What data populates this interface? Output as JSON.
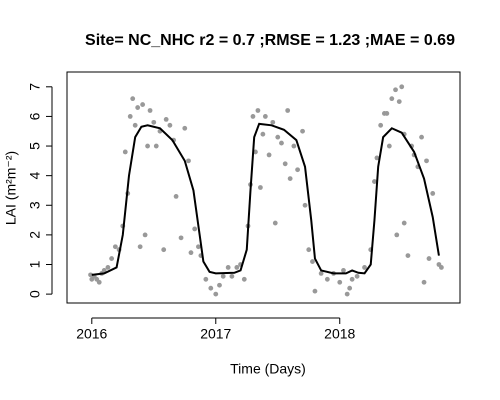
{
  "chart_data": {
    "type": "scatter",
    "title": "Site= NC_NHC r2 = 0.7 ;RMSE = 1.23 ;MAE = 0.69",
    "xlabel": "Time (Days)",
    "ylabel": "LAI (m²m⁻²)",
    "xlim": [
      2015.8,
      2018.97
    ],
    "ylim": [
      -0.3,
      7.5
    ],
    "xticks": [
      2016,
      2017,
      2018
    ],
    "yticks": [
      0,
      1,
      2,
      3,
      4,
      5,
      6,
      7
    ],
    "series": [
      {
        "type": "scatter",
        "color": "#999999",
        "x": [
          2015.99,
          2016.0,
          2016.02,
          2016.04,
          2016.06,
          2016.08,
          2016.1,
          2016.13,
          2016.16,
          2016.19,
          2016.22,
          2016.25,
          2016.27,
          2016.29,
          2016.31,
          2016.33,
          2016.35,
          2016.37,
          2016.39,
          2016.41,
          2016.43,
          2016.45,
          2016.47,
          2016.5,
          2016.52,
          2016.55,
          2016.58,
          2016.6,
          2016.63,
          2016.66,
          2016.68,
          2016.72,
          2016.75,
          2016.78,
          2016.8,
          2016.83,
          2016.86,
          2016.88,
          2016.92,
          2016.96,
          2017.0,
          2017.03,
          2017.06,
          2017.1,
          2017.13,
          2017.17,
          2017.2,
          2017.23,
          2017.26,
          2017.28,
          2017.3,
          2017.32,
          2017.34,
          2017.36,
          2017.38,
          2017.4,
          2017.43,
          2017.46,
          2017.48,
          2017.5,
          2017.53,
          2017.56,
          2017.58,
          2017.6,
          2017.63,
          2017.66,
          2017.7,
          2017.72,
          2017.75,
          2017.78,
          2017.8,
          2017.85,
          2017.9,
          2017.95,
          2018.0,
          2018.03,
          2018.06,
          2018.08,
          2018.1,
          2018.14,
          2018.2,
          2018.25,
          2018.28,
          2018.3,
          2018.33,
          2018.36,
          2018.38,
          2018.4,
          2018.42,
          2018.45,
          2018.48,
          2018.5,
          2018.52,
          2018.55,
          2018.58,
          2018.6,
          2018.63,
          2018.66,
          2018.68,
          2018.7,
          2018.72,
          2018.75,
          2018.8,
          2018.82,
          2018.46,
          2018.52
        ],
        "values": [
          0.65,
          0.5,
          0.6,
          0.5,
          0.4,
          0.7,
          0.8,
          0.9,
          1.2,
          1.6,
          1.5,
          2.3,
          4.8,
          3.4,
          6.0,
          6.6,
          5.7,
          6.3,
          1.6,
          6.4,
          2.0,
          5.0,
          6.2,
          5.8,
          5.0,
          5.5,
          1.5,
          5.9,
          5.7,
          5.2,
          3.3,
          1.9,
          5.6,
          4.5,
          1.4,
          2.2,
          1.6,
          1.3,
          0.5,
          0.2,
          0.0,
          0.3,
          0.6,
          0.9,
          0.6,
          0.9,
          1.0,
          0.5,
          2.3,
          3.7,
          6.0,
          4.8,
          6.2,
          3.6,
          5.4,
          6.0,
          4.7,
          5.8,
          2.4,
          5.3,
          5.1,
          4.4,
          6.2,
          3.9,
          5.0,
          4.2,
          5.5,
          3.0,
          1.5,
          1.1,
          0.1,
          0.7,
          0.5,
          0.7,
          0.4,
          0.8,
          0.0,
          0.2,
          0.5,
          0.6,
          0.9,
          1.5,
          3.8,
          4.6,
          5.7,
          6.1,
          6.1,
          5.0,
          6.6,
          6.9,
          6.5,
          7.0,
          5.4,
          1.3,
          5.0,
          4.7,
          4.3,
          5.3,
          0.4,
          4.5,
          1.2,
          3.4,
          1.0,
          0.9,
          2.0,
          2.4
        ]
      },
      {
        "type": "line",
        "color": "#000000",
        "x": [
          2016.0,
          2016.1,
          2016.2,
          2016.25,
          2016.3,
          2016.35,
          2016.4,
          2016.45,
          2016.55,
          2016.65,
          2016.75,
          2016.82,
          2016.87,
          2016.9,
          2016.95,
          2017.0,
          2017.15,
          2017.2,
          2017.25,
          2017.28,
          2017.31,
          2017.35,
          2017.45,
          2017.55,
          2017.65,
          2017.72,
          2017.77,
          2017.8,
          2017.85,
          2017.95,
          2018.05,
          2018.1,
          2018.15,
          2018.2,
          2018.25,
          2018.28,
          2018.31,
          2018.35,
          2018.42,
          2018.5,
          2018.6,
          2018.68,
          2018.75,
          2018.8
        ],
        "values": [
          0.65,
          0.7,
          0.9,
          2.0,
          4.0,
          5.3,
          5.65,
          5.7,
          5.6,
          5.2,
          4.5,
          3.5,
          2.0,
          1.1,
          0.75,
          0.7,
          0.72,
          0.8,
          1.5,
          3.5,
          5.3,
          5.75,
          5.7,
          5.55,
          5.2,
          4.3,
          2.5,
          1.2,
          0.8,
          0.7,
          0.7,
          0.8,
          0.72,
          0.7,
          1.0,
          2.5,
          4.3,
          5.3,
          5.6,
          5.45,
          4.8,
          3.9,
          2.6,
          1.3
        ]
      }
    ]
  }
}
